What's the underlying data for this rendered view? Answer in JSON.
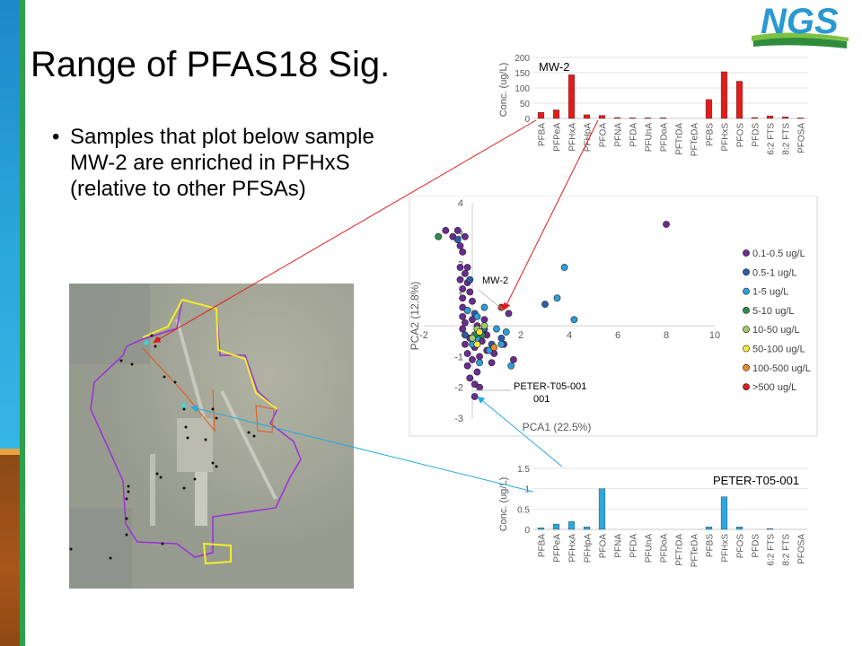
{
  "slide": {
    "title": "Range of PFAS18 Sig.",
    "bullet": "Samples that plot below sample MW-2 are enriched in PFHxS (relative to other PFSAs)",
    "logo_text": "NGS"
  },
  "colors": {
    "sidebar_blue": "#2aa7dc",
    "sidebar_brown": "#9c5016",
    "sidebar_green": "#2fa04a",
    "arrow_red": "#e31b1b",
    "arrow_cyan": "#29a8e0",
    "boundary_purple": "#9b30d9",
    "boundary_yellow": "#f2ee2c"
  },
  "chart_data": [
    {
      "type": "bar",
      "label": "MW-2",
      "ylabel": "Conc. (ug/L)",
      "ylim": [
        0,
        200
      ],
      "yticks": [
        "0",
        "50",
        "100",
        "150",
        "200"
      ],
      "color": "#e31b1b",
      "categories": [
        "PFBA",
        "PFPeA",
        "PFHxA",
        "PFHpA",
        "PFOA",
        "PFNA",
        "PFDA",
        "PFUnA",
        "PFDoA",
        "PFTrDA",
        "PFTeDA",
        "PFBS",
        "PFHxS",
        "PFOS",
        "PFDS",
        "6:2 FTS",
        "8:2 FTS",
        "PFOSA"
      ],
      "values": [
        20,
        28,
        143,
        12,
        10,
        3,
        2,
        2,
        2,
        0,
        0,
        62,
        153,
        122,
        3,
        8,
        5,
        2
      ]
    },
    {
      "type": "scatter",
      "xlabel": "PCA1 (22.5%)",
      "ylabel": "PCA2 (12.8%)",
      "xlim": [
        -2,
        10
      ],
      "ylim": [
        -3,
        4
      ],
      "xticks": [
        "-2",
        "0",
        "2",
        "4",
        "6",
        "8",
        "10"
      ],
      "yticks": [
        "4",
        "3",
        "2",
        "1",
        "-1",
        "-2",
        "-3"
      ],
      "annotations": [
        "MW-2",
        "PETER-T05-001"
      ],
      "series": [
        {
          "name": "0.1-0.5 ug/L",
          "color": "#6a2c91",
          "points": [
            [
              8,
              3.3
            ],
            [
              -1.1,
              3.1
            ],
            [
              -0.6,
              3.1
            ],
            [
              -0.8,
              2.9
            ],
            [
              -0.3,
              2.9
            ],
            [
              -0.5,
              2.6
            ],
            [
              -0.4,
              2.4
            ],
            [
              -0.2,
              1.9
            ],
            [
              -0.5,
              1.9
            ],
            [
              -0.3,
              1.7
            ],
            [
              -0.5,
              1.5
            ],
            [
              -0.2,
              1.4
            ],
            [
              -0.4,
              1.2
            ],
            [
              -0.1,
              1.1
            ],
            [
              -0.4,
              0.9
            ],
            [
              0,
              0.8
            ],
            [
              -0.4,
              0.6
            ],
            [
              -0.2,
              0.5
            ],
            [
              -0.4,
              0.3
            ],
            [
              0,
              0.2
            ],
            [
              -0.3,
              0.1
            ],
            [
              0.2,
              0
            ],
            [
              -0.4,
              -0.1
            ],
            [
              0.3,
              -0.2
            ],
            [
              -0.1,
              -0.4
            ],
            [
              0.4,
              -0.5
            ],
            [
              0.1,
              -0.7
            ],
            [
              0.6,
              -0.8
            ],
            [
              -0.2,
              -0.9
            ],
            [
              0.3,
              -1
            ],
            [
              0,
              -1.1
            ],
            [
              0.8,
              -1.2
            ],
            [
              -0.2,
              -1.3
            ],
            [
              0.2,
              -1.5
            ],
            [
              -0.1,
              -1.7
            ],
            [
              0.1,
              -1.9
            ],
            [
              0.3,
              -2
            ],
            [
              0.1,
              -2.3
            ],
            [
              0.6,
              -0.3
            ],
            [
              1.5,
              0.4
            ],
            [
              -0.3,
              -0.6
            ],
            [
              0.9,
              -0.9
            ],
            [
              0.5,
              0.2
            ],
            [
              1.3,
              -0.6
            ],
            [
              1.7,
              -1.1
            ]
          ]
        },
        {
          "name": "0.5-1 ug/L",
          "color": "#2a5da9",
          "points": [
            [
              -0.6,
              2.8
            ],
            [
              -0.1,
              1.5
            ],
            [
              0.1,
              0.4
            ],
            [
              0.5,
              -0.1
            ],
            [
              1.2,
              -0.4
            ],
            [
              3,
              0.7
            ],
            [
              -0.3,
              -0.3
            ],
            [
              0.8,
              -0.6
            ]
          ]
        },
        {
          "name": "1-5 ug/L",
          "color": "#2d9fd8",
          "points": [
            [
              3.8,
              1.9
            ],
            [
              3.5,
              0.9
            ],
            [
              4.2,
              0.2
            ],
            [
              1,
              -0.1
            ],
            [
              1.4,
              -0.2
            ],
            [
              1.2,
              -0.6
            ],
            [
              1.6,
              -1.3
            ],
            [
              0.2,
              0.3
            ],
            [
              0.5,
              0.6
            ],
            [
              0.2,
              -0.4
            ],
            [
              0.3,
              -1.2
            ],
            [
              0.7,
              -0.8
            ],
            [
              0,
              -0.6
            ],
            [
              -0.2,
              0.5
            ]
          ]
        },
        {
          "name": "5-10 ug/L",
          "color": "#2e8c47",
          "points": [
            [
              -1.4,
              2.9
            ],
            [
              0.1,
              -0.3
            ],
            [
              0.4,
              -0.3
            ]
          ]
        },
        {
          "name": "10-50 ug/L",
          "color": "#9ccc65",
          "points": [
            [
              0.2,
              -0.1
            ],
            [
              0.5,
              0
            ],
            [
              0,
              -0.4
            ]
          ]
        },
        {
          "name": "50-100 ug/L",
          "color": "#f5e83a",
          "points": [
            [
              0.3,
              -0.2
            ],
            [
              0.2,
              -0.6
            ]
          ]
        },
        {
          "name": "100-500 ug/L",
          "color": "#f08a24",
          "points": [
            [
              0.9,
              -0.7
            ]
          ]
        },
        {
          "name": ">500 ug/L",
          "color": "#d42020",
          "points": [
            [
              1.2,
              0.6
            ]
          ]
        }
      ]
    },
    {
      "type": "bar",
      "label": "PETER-T05-001",
      "ylabel": "Conc. (ug/L)",
      "ylim": [
        0,
        1.5
      ],
      "yticks": [
        "0",
        "0.5",
        "1",
        "1.5"
      ],
      "color": "#2aa8e0",
      "categories": [
        "PFBA",
        "PFPeA",
        "PFHxA",
        "PFHpA",
        "PFOA",
        "PFNA",
        "PFDA",
        "PFUnA",
        "PFDoA",
        "PFTrDA",
        "PFTeDA",
        "PFBS",
        "PFHxS",
        "PFOS",
        "PFDS",
        "6:2 FTS",
        "8:2 FTS",
        "PFOSA"
      ],
      "values": [
        0.04,
        0.13,
        0.19,
        0.06,
        1.0,
        0,
        0,
        0,
        0,
        0,
        0,
        0.06,
        0.8,
        0.06,
        0,
        0.02,
        0,
        0
      ]
    }
  ]
}
